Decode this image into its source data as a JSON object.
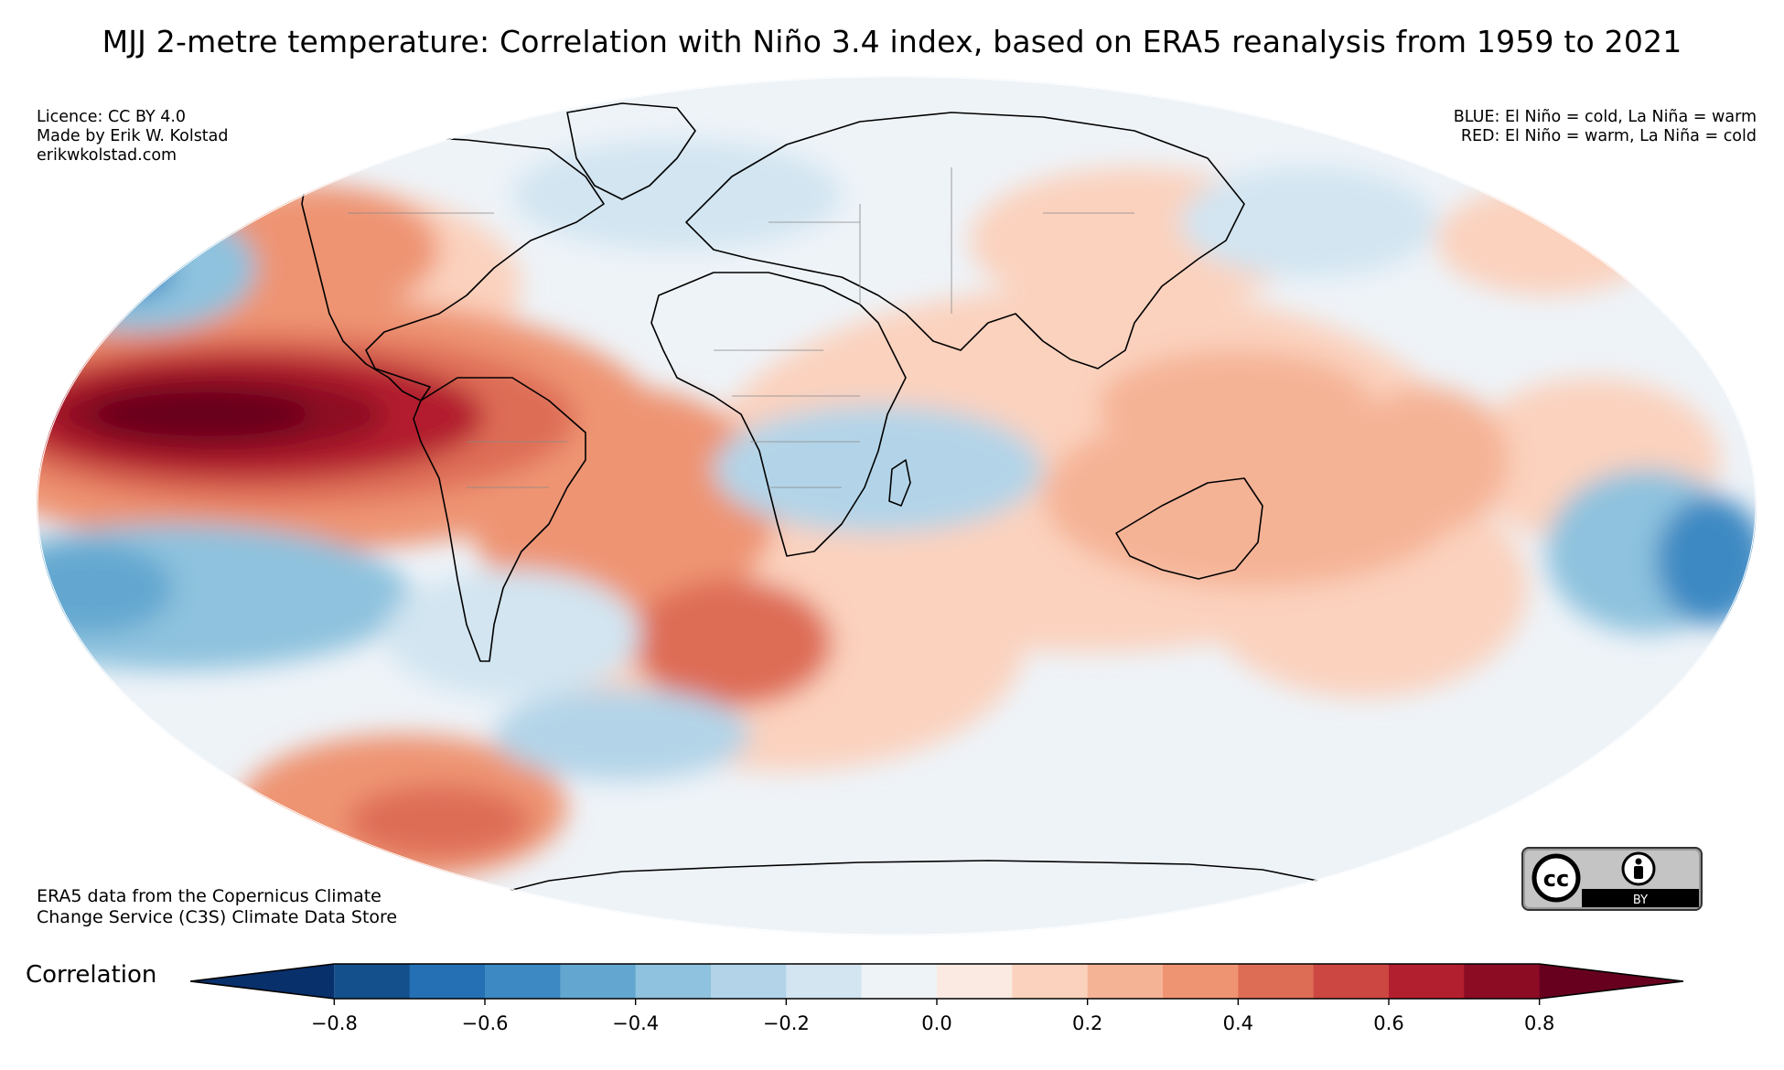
{
  "title": "MJJ 2-metre temperature: Correlation with Niño 3.4 index, based on ERA5 reanalysis from 1959 to 2021",
  "info_left": [
    "Licence: CC BY 4.0",
    "Made by Erik W. Kolstad",
    "erikwkolstad.com"
  ],
  "info_right": [
    "BLUE: El Niño = cold, La Niña = warm",
    "RED: El Niño = warm, La Niña = cold"
  ],
  "source": [
    "ERA5 data from the Copernicus Climate",
    "Change Service (C3S) Climate Data Store"
  ],
  "badge": {
    "cc": "cc",
    "by": "BY"
  },
  "colorbar": {
    "label": "Correlation",
    "ticks": [
      "−0.8",
      "−0.6",
      "−0.4",
      "−0.2",
      "0.0",
      "0.2",
      "0.4",
      "0.6",
      "0.8"
    ],
    "colors": [
      "#08306b",
      "#14508c",
      "#2570b4",
      "#3d89c3",
      "#63a7d0",
      "#8ec2de",
      "#b3d4e8",
      "#d2e5f1",
      "#eef3f8",
      "#fbeae2",
      "#fbd2be",
      "#f5b396",
      "#ee9473",
      "#de6d56",
      "#cd4742",
      "#b21f2f",
      "#8c0c24",
      "#67001f"
    ]
  },
  "map": {
    "projection": "mollweide",
    "colors": {
      "ocean_base": "#eef3f8",
      "strong_red": "#67001f",
      "red": "#cd4742",
      "mid_red": "#ee9473",
      "light_red": "#fbd2be",
      "blue": "#3d89c3",
      "light_blue": "#b3d4e8",
      "coast": "#000000",
      "border": "#888888"
    }
  }
}
